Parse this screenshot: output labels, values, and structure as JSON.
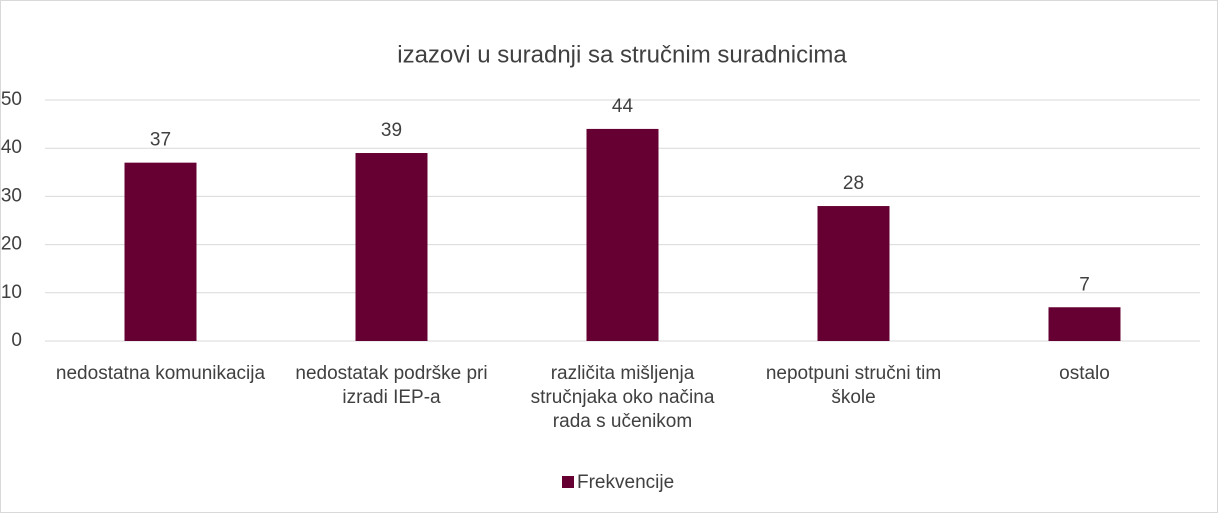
{
  "chart_data": {
    "type": "bar",
    "title": "izazovi u suradnji sa stručnim suradnicima",
    "categories": [
      "nedostatna komunikacija",
      "nedostatak podrške pri izradi IEP-a",
      "različita mišljenja stručnjaka oko načina rada s učenikom",
      "nepotpuni stručni tim škole",
      "ostalo"
    ],
    "series": [
      {
        "name": "Frekvencije",
        "color": "#660033",
        "values": [
          37,
          39,
          44,
          28,
          7
        ]
      }
    ],
    "ylim": [
      0,
      50
    ],
    "yticks": [
      0,
      10,
      20,
      30,
      40,
      50
    ],
    "grid": true,
    "legend": "bottom"
  }
}
